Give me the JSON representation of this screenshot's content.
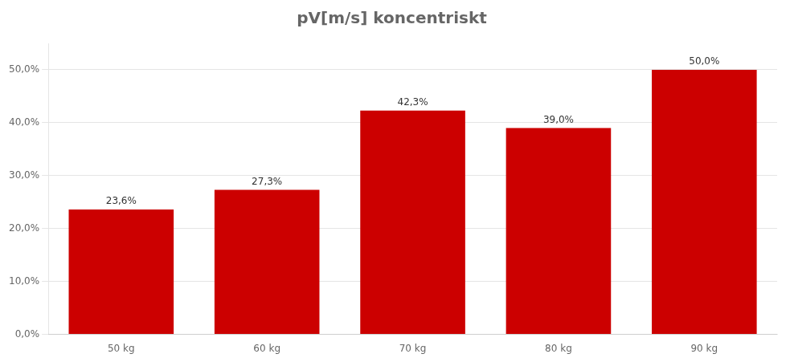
{
  "chart_data": {
    "type": "bar",
    "title": "pV[m/s] koncentriskt",
    "categories": [
      "50 kg",
      "60 kg",
      "70 kg",
      "80 kg",
      "90 kg"
    ],
    "values": [
      23.6,
      27.3,
      42.3,
      39.0,
      50.0
    ],
    "value_labels": [
      "23,6%",
      "27,3%",
      "42,3%",
      "39,0%",
      "50,0%"
    ],
    "data_labels": true,
    "color": "#CC0000",
    "ylim": [
      0,
      55
    ],
    "yticks": [
      {
        "value": 0,
        "label": "0,0%"
      },
      {
        "value": 10,
        "label": "10,0%"
      },
      {
        "value": 20,
        "label": "20,0%"
      },
      {
        "value": 30,
        "label": "30,0%"
      },
      {
        "value": 40,
        "label": "40,0%"
      },
      {
        "value": 50,
        "label": "50,0%"
      }
    ],
    "grid": true
  }
}
